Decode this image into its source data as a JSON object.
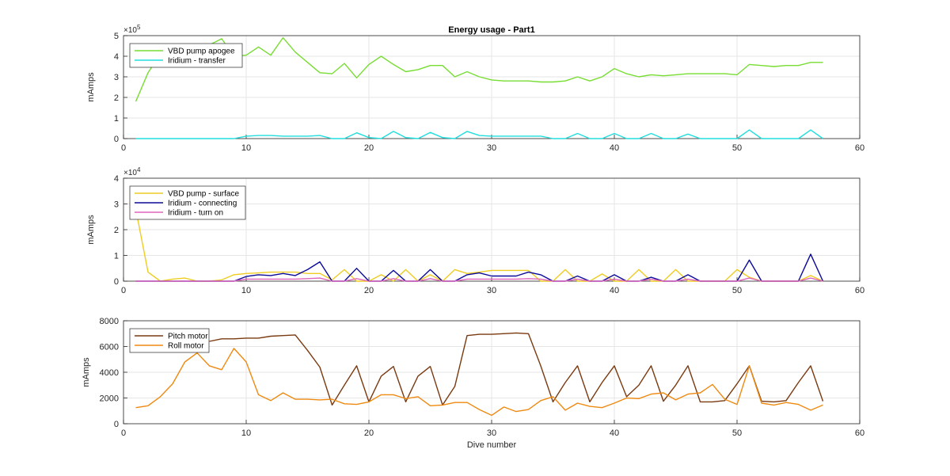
{
  "figure_title": "Energy usage - Part1",
  "chart_data": [
    {
      "type": "line",
      "title": "Energy usage - Part1",
      "xlabel": "",
      "ylabel": "mAmps",
      "xlim": [
        0,
        60
      ],
      "ylim": [
        0,
        5
      ],
      "x_ticks": [
        0,
        10,
        20,
        30,
        40,
        50,
        60
      ],
      "y_ticks": [
        0,
        1,
        2,
        3,
        4,
        5
      ],
      "y_multiplier": "×10",
      "y_exponent": "5",
      "grid": true,
      "legend": "top-left",
      "series": [
        {
          "name": "VBD pump apogee",
          "color": "#77dd33",
          "x": [
            1,
            2,
            3,
            4,
            5,
            6,
            7,
            8,
            9,
            10,
            11,
            12,
            13,
            14,
            15,
            16,
            17,
            18,
            19,
            20,
            21,
            22,
            23,
            24,
            25,
            26,
            27,
            28,
            29,
            30,
            31,
            32,
            33,
            34,
            35,
            36,
            37,
            38,
            39,
            40,
            41,
            42,
            43,
            44,
            45,
            46,
            47,
            48,
            49,
            50,
            51,
            52,
            53,
            54,
            55,
            56,
            57
          ],
          "values": [
            1.8,
            3.2,
            4.1,
            4.3,
            4.4,
            4.55,
            4.55,
            4.85,
            4.0,
            4.05,
            4.45,
            4.05,
            4.9,
            4.2,
            3.7,
            3.2,
            3.15,
            3.65,
            2.95,
            3.6,
            4.0,
            3.6,
            3.25,
            3.35,
            3.55,
            3.55,
            3.0,
            3.25,
            3.0,
            2.85,
            2.8,
            2.8,
            2.8,
            2.75,
            2.75,
            2.8,
            3.0,
            2.8,
            3.0,
            3.4,
            3.15,
            3.0,
            3.1,
            3.05,
            3.1,
            3.15,
            3.15,
            3.15,
            3.15,
            3.1,
            3.6,
            3.55,
            3.5,
            3.55,
            3.55,
            3.7,
            3.7
          ]
        },
        {
          "name": "Iridium - transfer",
          "color": "#22dddd",
          "x": [
            1,
            2,
            3,
            4,
            5,
            6,
            7,
            8,
            9,
            10,
            11,
            12,
            13,
            14,
            15,
            16,
            17,
            18,
            19,
            20,
            21,
            22,
            23,
            24,
            25,
            26,
            27,
            28,
            29,
            30,
            31,
            32,
            33,
            34,
            35,
            36,
            37,
            38,
            39,
            40,
            41,
            42,
            43,
            44,
            45,
            46,
            47,
            48,
            49,
            50,
            51,
            52,
            53,
            54,
            55,
            56,
            57
          ],
          "values": [
            0,
            0,
            0,
            0,
            0,
            0,
            0,
            0,
            0,
            0.12,
            0.15,
            0.15,
            0.12,
            0.12,
            0.12,
            0.15,
            0,
            0,
            0.28,
            0.05,
            0,
            0.35,
            0.05,
            0,
            0.3,
            0.05,
            0,
            0.35,
            0.15,
            0.12,
            0.12,
            0.12,
            0.12,
            0.12,
            0,
            0,
            0.25,
            0,
            0,
            0.25,
            0,
            0,
            0.25,
            0,
            0,
            0.22,
            0,
            0,
            0,
            0,
            0.42,
            0,
            0,
            0,
            0,
            0.42,
            0
          ]
        }
      ]
    },
    {
      "type": "line",
      "title": "",
      "xlabel": "",
      "ylabel": "mAmps",
      "xlim": [
        0,
        60
      ],
      "ylim": [
        0,
        4
      ],
      "x_ticks": [
        0,
        10,
        20,
        30,
        40,
        50,
        60
      ],
      "y_ticks": [
        0,
        1,
        2,
        3,
        4
      ],
      "y_multiplier": "×10",
      "y_exponent": "4",
      "grid": true,
      "legend": "top-left",
      "series": [
        {
          "name": "VBD pump - surface",
          "color": "#eecc22",
          "x": [
            1,
            2,
            3,
            4,
            5,
            6,
            7,
            8,
            9,
            10,
            11,
            12,
            13,
            14,
            15,
            16,
            17,
            18,
            19,
            20,
            21,
            22,
            23,
            24,
            25,
            26,
            27,
            28,
            29,
            30,
            31,
            32,
            33,
            34,
            35,
            36,
            37,
            38,
            39,
            40,
            41,
            42,
            43,
            44,
            45,
            46,
            47,
            48,
            49,
            50,
            51,
            52,
            53,
            54,
            55,
            56,
            57
          ],
          "values": [
            2.8,
            0.35,
            0,
            0.08,
            0.12,
            0,
            0,
            0.05,
            0.25,
            0.3,
            0.32,
            0.35,
            0.35,
            0.35,
            0.3,
            0.3,
            0.05,
            0.45,
            0,
            0,
            0.25,
            0,
            0.45,
            0,
            0.25,
            0,
            0.45,
            0.3,
            0.35,
            0.42,
            0.42,
            0.42,
            0.42,
            0,
            0,
            0.45,
            0,
            0,
            0.28,
            0,
            0,
            0.45,
            0,
            0,
            0.45,
            0,
            0,
            0,
            0,
            0.45,
            0.15,
            0,
            0,
            0,
            0,
            0.22,
            0
          ]
        },
        {
          "name": "Iridium - connecting",
          "color": "#0a0a99",
          "x": [
            1,
            2,
            3,
            4,
            5,
            6,
            7,
            8,
            9,
            10,
            11,
            12,
            13,
            14,
            15,
            16,
            17,
            18,
            19,
            20,
            21,
            22,
            23,
            24,
            25,
            26,
            27,
            28,
            29,
            30,
            31,
            32,
            33,
            34,
            35,
            36,
            37,
            38,
            39,
            40,
            41,
            42,
            43,
            44,
            45,
            46,
            47,
            48,
            49,
            50,
            51,
            52,
            53,
            54,
            55,
            56,
            57
          ],
          "values": [
            0,
            0,
            0,
            0,
            0,
            0,
            0,
            0,
            0,
            0.18,
            0.25,
            0.22,
            0.3,
            0.22,
            0.45,
            0.75,
            0,
            0,
            0.5,
            0,
            0,
            0.42,
            0,
            0,
            0.45,
            0,
            0,
            0.25,
            0.32,
            0.2,
            0.2,
            0.2,
            0.35,
            0.25,
            0,
            0,
            0.2,
            0,
            0,
            0.25,
            0,
            0,
            0.15,
            0,
            0,
            0.25,
            0,
            0,
            0,
            0,
            0.82,
            0,
            0,
            0,
            0,
            1.05,
            0
          ]
        },
        {
          "name": "Iridium - turn on",
          "color": "#dd66bb",
          "x": [
            1,
            2,
            3,
            4,
            5,
            6,
            7,
            8,
            9,
            10,
            11,
            12,
            13,
            14,
            15,
            16,
            17,
            18,
            19,
            20,
            21,
            22,
            23,
            24,
            25,
            26,
            27,
            28,
            29,
            30,
            31,
            32,
            33,
            34,
            35,
            36,
            37,
            38,
            39,
            40,
            41,
            42,
            43,
            44,
            45,
            46,
            47,
            48,
            49,
            50,
            51,
            52,
            53,
            54,
            55,
            56,
            57
          ],
          "values": [
            0,
            0,
            0,
            0,
            0,
            0,
            0,
            0,
            0,
            0.08,
            0.08,
            0.08,
            0.08,
            0.08,
            0.1,
            0.12,
            0,
            0,
            0.1,
            0,
            0,
            0.1,
            0,
            0,
            0.1,
            0,
            0,
            0.08,
            0.08,
            0.08,
            0.08,
            0.08,
            0.1,
            0.08,
            0,
            0,
            0.08,
            0,
            0,
            0.08,
            0,
            0,
            0.08,
            0,
            0,
            0.08,
            0,
            0,
            0,
            0,
            0.12,
            0,
            0,
            0,
            0,
            0.12,
            0
          ]
        }
      ]
    },
    {
      "type": "line",
      "title": "",
      "xlabel": "Dive number",
      "ylabel": "mAmps",
      "xlim": [
        0,
        60
      ],
      "ylim": [
        0,
        8000
      ],
      "x_ticks": [
        0,
        10,
        20,
        30,
        40,
        50,
        60
      ],
      "y_ticks": [
        0,
        2000,
        4000,
        6000,
        8000
      ],
      "grid": true,
      "legend": "top-left",
      "series": [
        {
          "name": "Pitch motor",
          "color": "#7a3a10",
          "x": [
            7,
            8,
            9,
            10,
            11,
            12,
            13,
            14,
            15,
            16,
            17,
            18,
            19,
            20,
            21,
            22,
            23,
            24,
            25,
            26,
            27,
            28,
            29,
            30,
            31,
            32,
            33,
            34,
            35,
            36,
            37,
            38,
            39,
            40,
            41,
            42,
            43,
            44,
            45,
            46,
            47,
            48,
            49,
            50,
            51,
            52,
            53,
            54,
            55,
            56,
            57
          ],
          "values": [
            6400,
            6600,
            6600,
            6650,
            6650,
            6800,
            6850,
            6900,
            5700,
            4400,
            1450,
            3000,
            4500,
            1700,
            3700,
            4450,
            1700,
            3700,
            4450,
            1450,
            2900,
            6850,
            6950,
            6950,
            7000,
            7050,
            7000,
            4500,
            1700,
            3200,
            4500,
            1700,
            3200,
            4500,
            2100,
            3000,
            4500,
            1750,
            3000,
            4500,
            1700,
            1700,
            1800,
            3100,
            4500,
            1750,
            1700,
            1800,
            3200,
            4500,
            1750
          ]
        },
        {
          "name": "Roll motor",
          "color": "#ee8a11",
          "x": [
            1,
            2,
            3,
            4,
            5,
            6,
            7,
            8,
            9,
            10,
            11,
            12,
            13,
            14,
            15,
            16,
            17,
            18,
            19,
            20,
            21,
            22,
            23,
            24,
            25,
            26,
            27,
            28,
            29,
            30,
            31,
            32,
            33,
            34,
            35,
            36,
            37,
            38,
            39,
            40,
            41,
            42,
            43,
            44,
            45,
            46,
            47,
            48,
            49,
            50,
            51,
            52,
            53,
            54,
            55,
            56,
            57
          ],
          "values": [
            1250,
            1400,
            2100,
            3100,
            4800,
            5500,
            4500,
            4200,
            5850,
            4800,
            2250,
            1800,
            2400,
            1900,
            1900,
            1850,
            1900,
            1550,
            1500,
            1700,
            2250,
            2250,
            1950,
            2100,
            1400,
            1450,
            1650,
            1650,
            1100,
            650,
            1300,
            950,
            1100,
            1800,
            2100,
            1050,
            1600,
            1350,
            1250,
            1600,
            2000,
            1950,
            2300,
            2400,
            1850,
            2300,
            2400,
            3050,
            1900,
            1500,
            4500,
            1600,
            1450,
            1650,
            1500,
            1050,
            1450
          ]
        }
      ]
    }
  ]
}
